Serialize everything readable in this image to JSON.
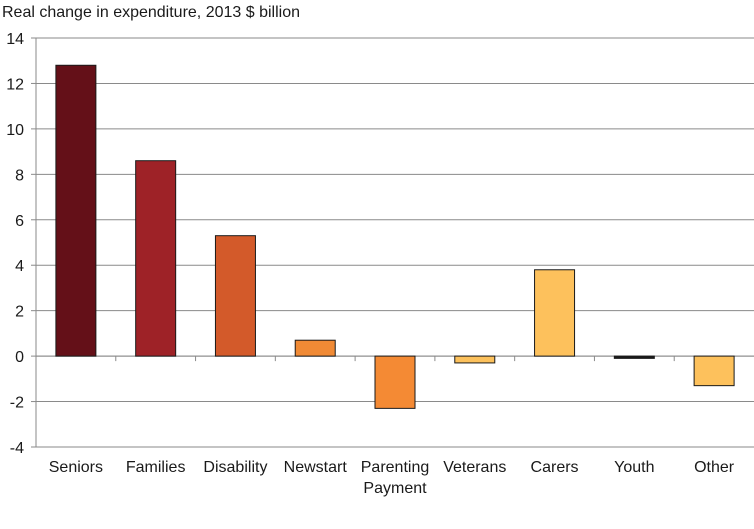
{
  "chart_data": {
    "type": "bar",
    "title": "Real change in expenditure, 2013 $ billion",
    "xlabel": "",
    "ylabel": "",
    "categories": [
      "Seniors",
      "Families",
      "Disability",
      "Newstart",
      "Parenting Payment",
      "Veterans",
      "Carers",
      "Youth",
      "Other"
    ],
    "category_lines": [
      [
        "Seniors"
      ],
      [
        "Families"
      ],
      [
        "Disability"
      ],
      [
        "Newstart"
      ],
      [
        "Parenting",
        "Payment"
      ],
      [
        "Veterans"
      ],
      [
        "Carers"
      ],
      [
        "Youth"
      ],
      [
        "Other"
      ]
    ],
    "values": [
      12.8,
      8.6,
      5.3,
      0.7,
      -2.3,
      -0.3,
      3.8,
      -0.1,
      -1.3
    ],
    "colors": [
      "#641018",
      "#9e2227",
      "#d35a2a",
      "#f08a35",
      "#f48a34",
      "#fcc15c",
      "#fdc15c",
      "#1a1a1a",
      "#fdc15c"
    ],
    "ylim": [
      -4,
      14
    ],
    "yticks": [
      -4,
      -2,
      0,
      2,
      4,
      6,
      8,
      10,
      12,
      14
    ],
    "grid": true,
    "legend": "none"
  }
}
